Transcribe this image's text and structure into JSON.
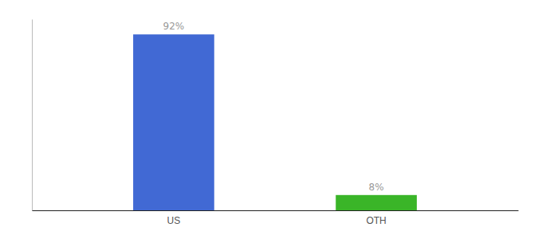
{
  "chart_data": {
    "type": "bar",
    "categories": [
      "US",
      "OTH"
    ],
    "values": [
      92,
      8
    ],
    "value_labels": [
      "92%",
      "8%"
    ],
    "colors": [
      "#4169d4",
      "#3ab528"
    ],
    "ylim": [
      0,
      100
    ],
    "grid": false,
    "data_labels": true,
    "tick_labels": "x"
  }
}
